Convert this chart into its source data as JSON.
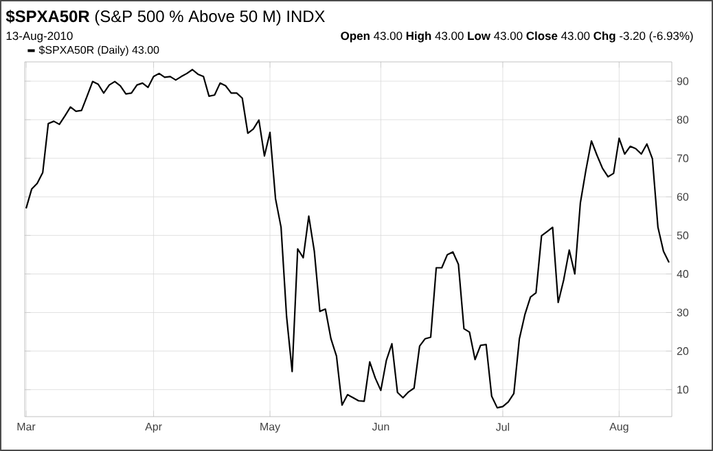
{
  "chart_data": {
    "type": "line",
    "title": "**$SPXA50R** (S&P 500 % Above 50 M) INDX",
    "subtitle": "13-Aug-2010",
    "annotations": [
      "**Open** 43.00  **High** 43.00  **Low** 43.00  **Close** 43.00  **Chg** -3.20 (-6.93%)"
    ],
    "categories": [
      "Mar",
      null,
      null,
      null,
      null,
      null,
      null,
      null,
      null,
      null,
      null,
      null,
      null,
      null,
      null,
      null,
      null,
      null,
      null,
      null,
      null,
      null,
      null,
      "Apr",
      null,
      null,
      null,
      null,
      null,
      null,
      null,
      null,
      null,
      null,
      null,
      null,
      null,
      null,
      null,
      null,
      null,
      null,
      null,
      null,
      "May",
      null,
      null,
      null,
      null,
      null,
      null,
      null,
      null,
      null,
      null,
      null,
      null,
      null,
      null,
      null,
      null,
      null,
      null,
      null,
      "Jun",
      null,
      null,
      null,
      null,
      null,
      null,
      null,
      null,
      null,
      null,
      null,
      null,
      null,
      null,
      null,
      null,
      null,
      null,
      null,
      null,
      null,
      "Jul",
      null,
      null,
      null,
      null,
      null,
      null,
      null,
      null,
      null,
      null,
      null,
      null,
      null,
      null,
      null,
      null,
      null,
      null,
      null,
      null,
      "Aug",
      null,
      null,
      null,
      null,
      null,
      null,
      null,
      null,
      null
    ],
    "series": [
      {
        "name": "$SPXA50R (Daily) 43.00",
        "color": "#000000",
        "values": [
          57,
          62,
          63.5,
          66.3,
          79,
          79.6,
          78.8,
          81,
          83.3,
          82.2,
          82.4,
          86.1,
          89.9,
          89.2,
          86.9,
          89,
          89.9,
          88.8,
          86.7,
          86.9,
          89,
          89.5,
          88.4,
          91.2,
          92,
          91,
          91.2,
          90.3,
          91.2,
          92,
          93,
          91.8,
          91.2,
          86.1,
          86.4,
          89.5,
          88.8,
          86.9,
          86.9,
          85.6,
          76.5,
          77.6,
          79.9,
          70.6,
          76.7,
          59.5,
          52.1,
          28.9,
          14.7,
          46.5,
          44.2,
          55,
          45.9,
          30.3,
          30.9,
          23.2,
          18.7,
          6,
          8.7,
          7.9,
          7.1,
          7,
          17.2,
          13,
          9.8,
          17.6,
          21.9,
          9.3,
          7.9,
          9.4,
          10.4,
          21.3,
          23.2,
          23.6,
          41.6,
          41.6,
          45,
          45.7,
          42.5,
          25.8,
          24.9,
          17.8,
          21.5,
          21.7,
          8.3,
          5.3,
          5.6,
          6.8,
          9,
          23.2,
          29.5,
          34,
          35.1,
          49.9,
          51,
          52.1,
          32.6,
          38.5,
          46.2,
          40,
          58.4,
          66.9,
          74.5,
          70.8,
          67.4,
          65.2,
          66.1,
          75.2,
          71.1,
          73.1,
          72.5,
          71.1,
          73.7,
          69.9,
          52.1,
          45.9,
          43
        ]
      }
    ],
    "ylim": [
      3,
      95
    ],
    "yticks": [
      10,
      20,
      30,
      40,
      50,
      60,
      70,
      80,
      90
    ],
    "grid": true,
    "legend": "top left",
    "marker": "none",
    "line_style": "solid"
  }
}
